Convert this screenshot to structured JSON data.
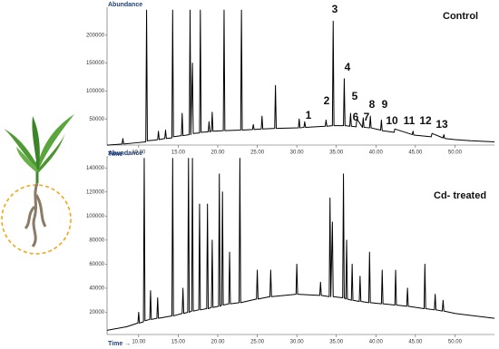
{
  "chart_data": [
    {
      "type": "line",
      "y_label": "Abundance",
      "x_label": "Time →",
      "tag": "Control",
      "annotations": [
        "1",
        "2",
        "3",
        "4",
        "5",
        "6",
        "7",
        "8",
        "9",
        "10",
        "11",
        "12",
        "13"
      ],
      "xlim": [
        6,
        55
      ],
      "ylim": [
        0,
        250000
      ],
      "xticks": [
        {
          "value": 10,
          "label": "10.00"
        },
        {
          "value": 15,
          "label": "15.00"
        },
        {
          "value": 20,
          "label": "20.00"
        },
        {
          "value": 25,
          "label": "25.00"
        },
        {
          "value": 30,
          "label": "30.00"
        },
        {
          "value": 35,
          "label": "35.00"
        },
        {
          "value": 40,
          "label": "40.00"
        },
        {
          "value": 45,
          "label": "45.00"
        },
        {
          "value": 50,
          "label": "50.00"
        }
      ],
      "yticks": [
        50000,
        100000,
        150000,
        200000
      ],
      "color": "#000000",
      "x": [
        6,
        7.9,
        8.0,
        8.1,
        9.5,
        10.9,
        11.0,
        11.1,
        12.0,
        12.4,
        12.5,
        12.6,
        13.3,
        13.4,
        13.5,
        14.2,
        14.3,
        14.4,
        15.4,
        15.5,
        15.6,
        16.4,
        16.5,
        16.6,
        16.8,
        16.9,
        17.7,
        17.8,
        17.9,
        18.8,
        18.9,
        19.0,
        19.2,
        19.3,
        19.4,
        20.7,
        20.8,
        20.9,
        22.9,
        23.0,
        23.1,
        24.4,
        24.5,
        24.6,
        25.5,
        25.6,
        25.7,
        27.2,
        27.3,
        27.4,
        30.2,
        30.3,
        30.4,
        30.9,
        31.0,
        31.1,
        33.6,
        33.7,
        33.8,
        34.5,
        34.6,
        34.7,
        35.9,
        36.0,
        36.1,
        36.7,
        36.8,
        36.9,
        37.5,
        37.6,
        38.3,
        38.4,
        38.5,
        39.2,
        39.3,
        39.4,
        40.6,
        40.7,
        40.8,
        42.3,
        42.4,
        44.6,
        44.7,
        44.8,
        47,
        47.1,
        48.5,
        48.6,
        48.7,
        50,
        52,
        55
      ],
      "values": [
        3000,
        5000,
        15000,
        5000,
        7000,
        9000,
        245000,
        11000,
        12000,
        13000,
        28000,
        13000,
        15000,
        30000,
        15000,
        16000,
        245000,
        18000,
        20000,
        60000,
        20000,
        22000,
        245000,
        22000,
        150000,
        24000,
        25000,
        245000,
        26000,
        27000,
        45000,
        27000,
        28000,
        62000,
        28000,
        29000,
        245000,
        29000,
        30000,
        245000,
        30000,
        31000,
        40000,
        31000,
        32000,
        55000,
        32000,
        33000,
        110000,
        33000,
        34000,
        50000,
        34000,
        35000,
        45000,
        35000,
        37000,
        48000,
        37000,
        38000,
        225000,
        38000,
        38000,
        122000,
        38000,
        37000,
        60000,
        37000,
        36000,
        50000,
        35000,
        52000,
        35000,
        34000,
        55000,
        34000,
        30000,
        48000,
        29000,
        26000,
        32000,
        22000,
        28000,
        21000,
        18000,
        24000,
        16000,
        22000,
        15000,
        13000,
        11000,
        9000
      ]
    },
    {
      "type": "line",
      "y_label": "Abundance",
      "x_label": "Time →",
      "tag": "Cd- treated",
      "xlim": [
        6,
        55
      ],
      "ylim": [
        0,
        150000
      ],
      "xticks": [
        {
          "value": 10,
          "label": "10.00"
        },
        {
          "value": 15,
          "label": "15.00"
        },
        {
          "value": 20,
          "label": "20.00"
        },
        {
          "value": 25,
          "label": "25.00"
        },
        {
          "value": 30,
          "label": "30.00"
        },
        {
          "value": 35,
          "label": "35.00"
        },
        {
          "value": 40,
          "label": "40.00"
        },
        {
          "value": 45,
          "label": "45.00"
        },
        {
          "value": 50,
          "label": "50.00"
        }
      ],
      "yticks": [
        20000,
        40000,
        60000,
        80000,
        100000,
        120000,
        140000
      ],
      "color": "#000000",
      "x": [
        6,
        8.5,
        9.9,
        10.0,
        10.1,
        10.6,
        10.7,
        10.8,
        11.4,
        11.5,
        11.6,
        12.3,
        12.4,
        12.5,
        14.2,
        14.3,
        14.4,
        15.5,
        15.6,
        15.7,
        16.2,
        16.3,
        16.4,
        16.7,
        16.8,
        16.9,
        17.6,
        17.7,
        17.8,
        18.6,
        18.7,
        18.8,
        19.2,
        19.3,
        19.4,
        20.1,
        20.2,
        20.3,
        20.5,
        20.6,
        20.7,
        21.4,
        21.5,
        21.6,
        22.7,
        22.8,
        22.9,
        24.9,
        25.0,
        25.1,
        26.6,
        26.7,
        26.8,
        29.9,
        30.0,
        30.1,
        32.9,
        33.0,
        33.1,
        34.1,
        34.2,
        34.3,
        34.5,
        34.6,
        35.8,
        35.9,
        36.0,
        36.2,
        36.3,
        36.4,
        36.9,
        37.0,
        37.1,
        37.9,
        38.0,
        38.1,
        39.1,
        39.2,
        39.3,
        40.7,
        40.8,
        40.9,
        42.4,
        42.5,
        42.6,
        43.9,
        44.0,
        44.1,
        46.1,
        46.2,
        46.3,
        47.4,
        47.5,
        47.6,
        48.4,
        48.5,
        48.6,
        50,
        55
      ],
      "values": [
        5000,
        8000,
        11000,
        20000,
        11000,
        12000,
        148000,
        13000,
        14000,
        38000,
        14000,
        15000,
        32000,
        15000,
        17000,
        148000,
        17000,
        19000,
        40000,
        19000,
        20000,
        148000,
        20000,
        21000,
        148000,
        21000,
        22000,
        110000,
        22000,
        23000,
        110000,
        23000,
        24000,
        80000,
        24000,
        25000,
        135000,
        25000,
        26000,
        120000,
        26000,
        27000,
        70000,
        27000,
        28000,
        148000,
        28000,
        31000,
        55000,
        31000,
        33000,
        55000,
        33000,
        35000,
        60000,
        35000,
        34000,
        45000,
        34000,
        33000,
        115000,
        33000,
        95000,
        33000,
        32000,
        135000,
        32000,
        31000,
        80000,
        31000,
        30000,
        60000,
        30000,
        29000,
        50000,
        29000,
        28000,
        70000,
        28000,
        27000,
        55000,
        27000,
        26000,
        55000,
        26000,
        25000,
        40000,
        25000,
        23000,
        60000,
        23000,
        22000,
        35000,
        22000,
        21000,
        30000,
        21000,
        19000,
        15000
      ]
    }
  ]
}
